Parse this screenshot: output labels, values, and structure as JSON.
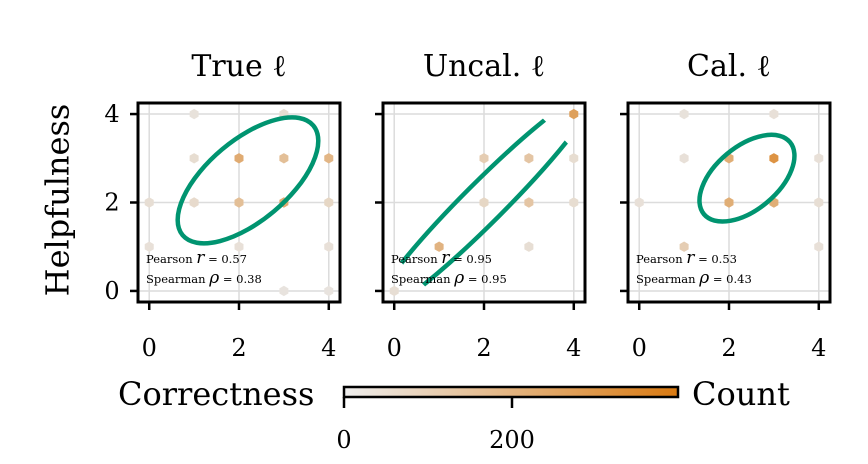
{
  "chart_data": {
    "type": "hexbin",
    "ylabel": "Helpfulness",
    "xlabel": "Correctness",
    "xlim": [
      -0.25,
      4.25
    ],
    "ylim": [
      -0.25,
      4.25
    ],
    "ticks": [
      0,
      2,
      4
    ],
    "grid": true,
    "panels": [
      {
        "title": "True ℓ",
        "pearson_label": "Pearson",
        "pearson_value": "= 0.57",
        "spearman_label": "Spearman",
        "spearman_value": "= 0.38",
        "ellipse": {
          "cx": 2.2,
          "cy": 2.5,
          "rx": 1.9,
          "ry": 0.9,
          "angle": 40
        },
        "hexes": [
          {
            "x": 1,
            "y": 4,
            "count": 4
          },
          {
            "x": 3,
            "y": 4,
            "count": 10
          },
          {
            "x": 1,
            "y": 3,
            "count": 10
          },
          {
            "x": 2,
            "y": 3,
            "count": 150
          },
          {
            "x": 3,
            "y": 3,
            "count": 80
          },
          {
            "x": 4,
            "y": 3,
            "count": 110
          },
          {
            "x": 0,
            "y": 2,
            "count": 8
          },
          {
            "x": 1,
            "y": 2,
            "count": 14
          },
          {
            "x": 2,
            "y": 2,
            "count": 80
          },
          {
            "x": 3,
            "y": 2,
            "count": 150
          },
          {
            "x": 4,
            "y": 2,
            "count": 20
          },
          {
            "x": 0,
            "y": 1,
            "count": 6
          },
          {
            "x": 2,
            "y": 1,
            "count": 6
          },
          {
            "x": 4,
            "y": 1,
            "count": 6
          },
          {
            "x": 3,
            "y": 0,
            "count": 3
          },
          {
            "x": 4,
            "y": 0,
            "count": 3
          }
        ]
      },
      {
        "title": "Uncal. ℓ",
        "pearson_label": "Pearson",
        "pearson_value": "= 0.95",
        "spearman_label": "Spearman",
        "spearman_value": "= 0.95",
        "ellipse": {
          "cx": 2.0,
          "cy": 2.0,
          "rx": 3.5,
          "ry": 0.45,
          "angle": 45
        },
        "hexes": [
          {
            "x": 4,
            "y": 4,
            "count": 200
          },
          {
            "x": 2,
            "y": 3,
            "count": 40
          },
          {
            "x": 3,
            "y": 3,
            "count": 60
          },
          {
            "x": 4,
            "y": 3,
            "count": 10
          },
          {
            "x": 2,
            "y": 2,
            "count": 20
          },
          {
            "x": 3,
            "y": 2,
            "count": 60
          },
          {
            "x": 4,
            "y": 2,
            "count": 10
          },
          {
            "x": 1,
            "y": 1,
            "count": 120
          },
          {
            "x": 3,
            "y": 1,
            "count": 8
          },
          {
            "x": 0,
            "y": 0,
            "count": 8
          }
        ]
      },
      {
        "title": "Cal. ℓ",
        "pearson_label": "Pearson",
        "pearson_value": "= 0.53",
        "spearman_label": "Spearman",
        "spearman_value": "= 0.43",
        "ellipse": {
          "cx": 2.4,
          "cy": 2.55,
          "rx": 1.25,
          "ry": 0.7,
          "angle": 40
        },
        "hexes": [
          {
            "x": 1,
            "y": 4,
            "count": 4
          },
          {
            "x": 3,
            "y": 4,
            "count": 6
          },
          {
            "x": 1,
            "y": 3,
            "count": 6
          },
          {
            "x": 2,
            "y": 3,
            "count": 140
          },
          {
            "x": 3,
            "y": 3,
            "count": 260
          },
          {
            "x": 4,
            "y": 3,
            "count": 6
          },
          {
            "x": 0,
            "y": 2,
            "count": 6
          },
          {
            "x": 2,
            "y": 2,
            "count": 140
          },
          {
            "x": 3,
            "y": 2,
            "count": 140
          },
          {
            "x": 4,
            "y": 2,
            "count": 8
          },
          {
            "x": 1,
            "y": 1,
            "count": 40
          },
          {
            "x": 4,
            "y": 1,
            "count": 6
          }
        ]
      }
    ],
    "colorbar": {
      "label": "Count",
      "min": 0,
      "max": 400,
      "ticks": [
        0,
        200
      ],
      "tick_labels": [
        "0",
        "200"
      ],
      "color_low": "#e9e9e9",
      "color_high": "#d97a12"
    },
    "ellipse_color": "#009470"
  }
}
